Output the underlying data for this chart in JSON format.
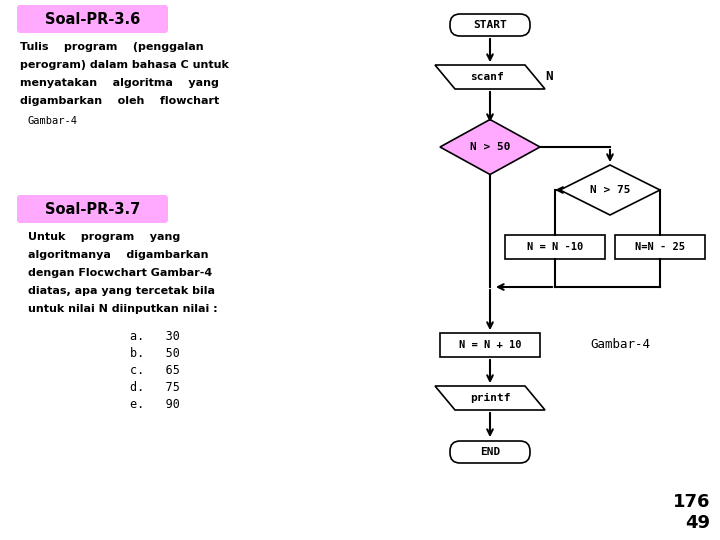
{
  "bg_color": "#ffffff",
  "title_36": "Soal-PR-3.6",
  "title_37": "Soal-PR-3.7",
  "title_bg": "#ffaaff",
  "text_36_lines": [
    "Tulis    program    (penggalan",
    "perogram) dalam bahasa C untuk",
    "menyatakan    algoritma    yang",
    "digambarkan    oleh    flowchart"
  ],
  "text_36_small": "Gambar-4",
  "text_37_lines": [
    "Untuk    program    yang",
    "algoritmanya    digambarkan",
    "dengan Flocwchart Gambar-4",
    "diatas, apa yang tercetak bila",
    "untuk nilai N diinputkan nilai :"
  ],
  "choices": [
    "a.   30",
    "b.   50",
    "c.   65",
    "d.   75",
    "e.   90"
  ],
  "page_num": "176\n49",
  "gambar4_label": "Gambar-4",
  "diamond_color": "#ffaaff",
  "box_color": "#ffffff",
  "arrow_color": "#000000"
}
